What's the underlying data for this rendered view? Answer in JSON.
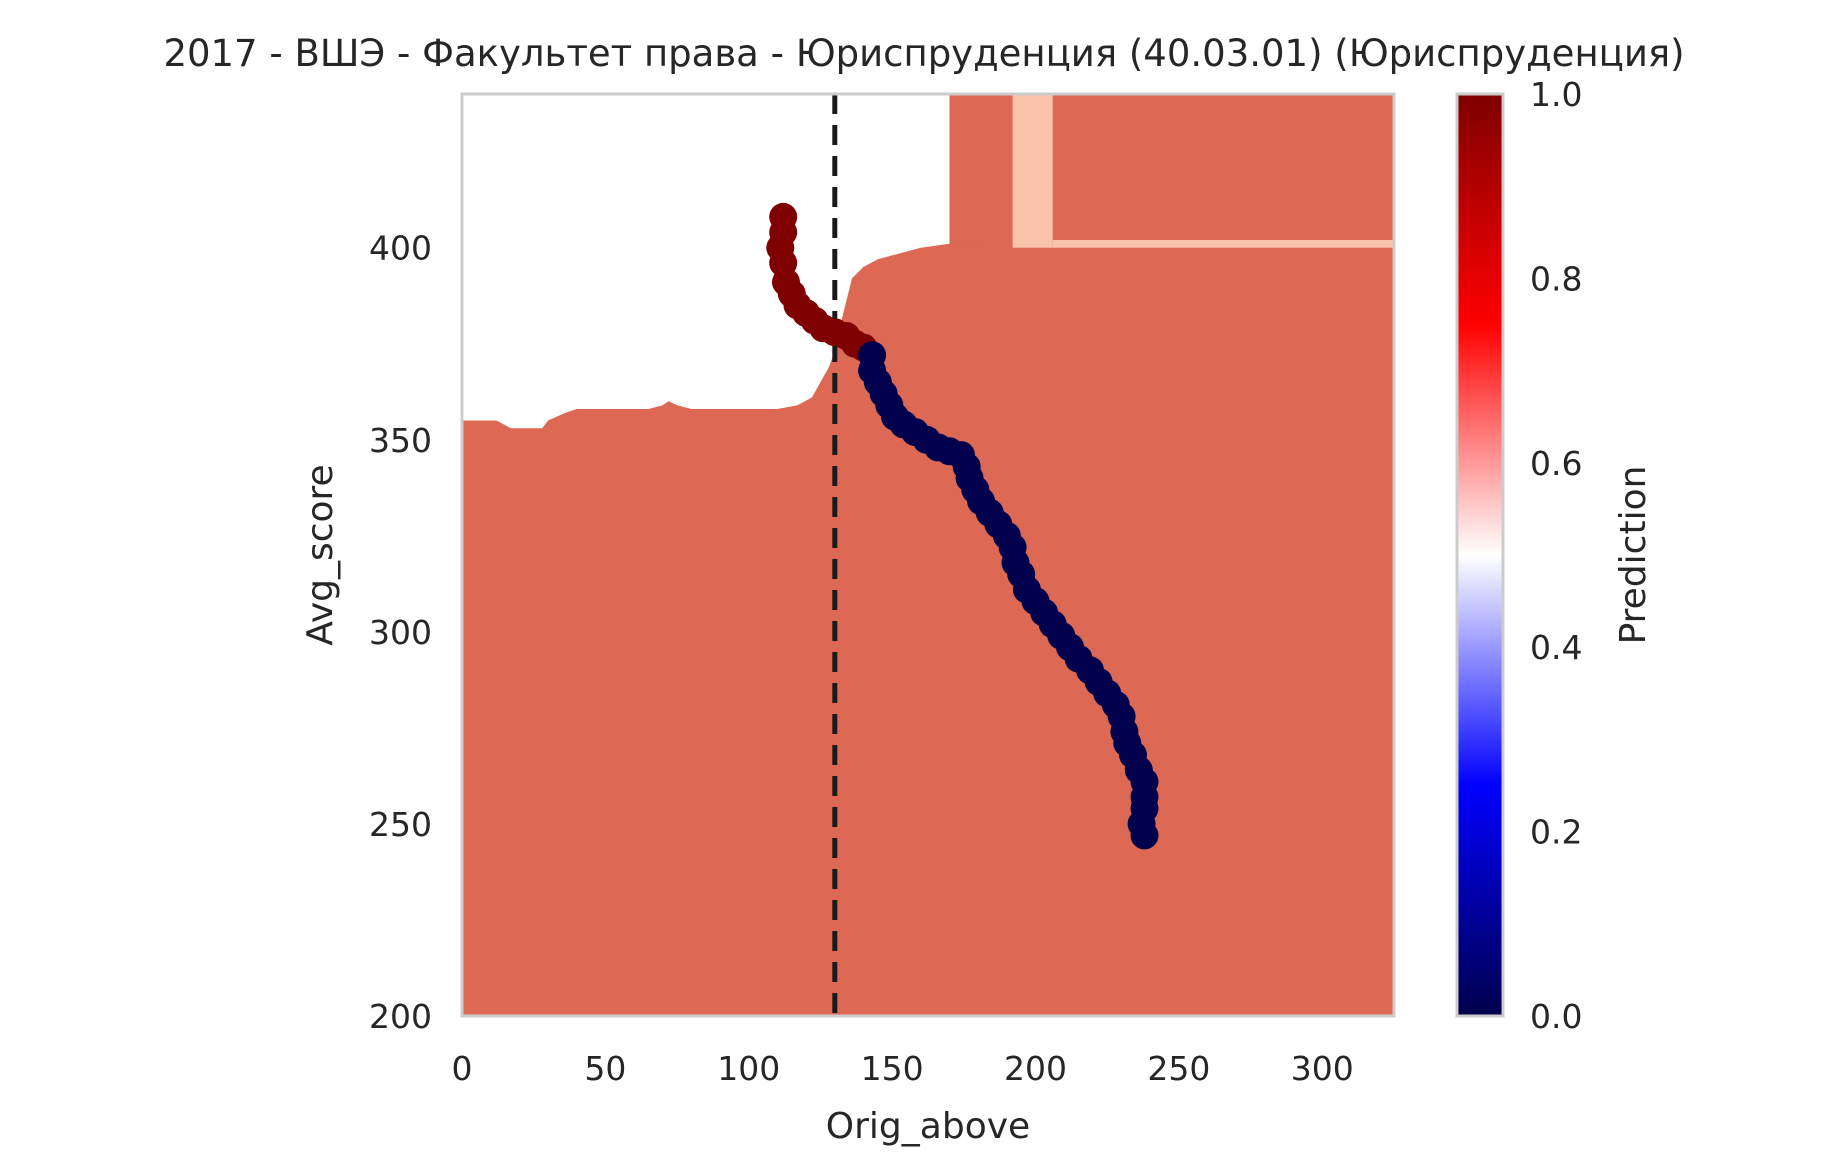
{
  "chart_data": {
    "type": "heatmap",
    "title": "2017 - ВШЭ - Факультет права - Юриспруденция (40.03.01) (Юриспруденция)",
    "xlabel": "Orig_above",
    "ylabel": "Avg_score",
    "xlim": [
      0,
      325
    ],
    "ylim": [
      200,
      440
    ],
    "x_ticks": [
      0,
      50,
      100,
      150,
      200,
      250,
      300
    ],
    "y_ticks": [
      200,
      250,
      300,
      350,
      400
    ],
    "grid": false,
    "colorbar": {
      "label": "Prediction",
      "range": [
        0,
        1
      ],
      "ticks": [
        "0.0",
        "0.2",
        "0.4",
        "0.6",
        "0.8",
        "1.0"
      ],
      "colormap": "seismic"
    },
    "contour_levels": [
      {
        "level": "0.0-0.1",
        "color": "#1b5594"
      },
      {
        "level": "0.1-0.2",
        "color": "#4a94c4"
      },
      {
        "level": "0.2-0.3",
        "color": "#a6cce2"
      },
      {
        "level": "0.3-0.4",
        "color": "#d2e5f0"
      },
      {
        "level": "0.4-0.5",
        "color": "#f7f7f7"
      },
      {
        "level": "0.5-0.6",
        "color": "#f9c4ab"
      },
      {
        "level": "0.6-0.7",
        "color": "#dd6853"
      },
      {
        "level": "0.7-1.0",
        "color": "#9b1028"
      }
    ],
    "threshold_x": 130,
    "threshold_style": "dashed",
    "threshold_color": "#1a1a1a",
    "trajectory": [
      {
        "x": 112,
        "y": 408,
        "p": 1
      },
      {
        "x": 112,
        "y": 404,
        "p": 1
      },
      {
        "x": 111,
        "y": 400,
        "p": 1
      },
      {
        "x": 112,
        "y": 396,
        "p": 1
      },
      {
        "x": 113,
        "y": 391,
        "p": 1
      },
      {
        "x": 115,
        "y": 388,
        "p": 1
      },
      {
        "x": 117,
        "y": 385,
        "p": 1
      },
      {
        "x": 120,
        "y": 383,
        "p": 1
      },
      {
        "x": 123,
        "y": 381,
        "p": 1
      },
      {
        "x": 126,
        "y": 379,
        "p": 1
      },
      {
        "x": 130,
        "y": 378,
        "p": 1
      },
      {
        "x": 134,
        "y": 377,
        "p": 1
      },
      {
        "x": 137,
        "y": 375,
        "p": 1
      },
      {
        "x": 140,
        "y": 374,
        "p": 1
      },
      {
        "x": 143,
        "y": 372,
        "p": 0
      },
      {
        "x": 143,
        "y": 368,
        "p": 0
      },
      {
        "x": 145,
        "y": 365,
        "p": 0
      },
      {
        "x": 147,
        "y": 362,
        "p": 0
      },
      {
        "x": 149,
        "y": 359,
        "p": 0
      },
      {
        "x": 151,
        "y": 356,
        "p": 0
      },
      {
        "x": 154,
        "y": 354,
        "p": 0
      },
      {
        "x": 158,
        "y": 352,
        "p": 0
      },
      {
        "x": 162,
        "y": 350,
        "p": 0
      },
      {
        "x": 166,
        "y": 348,
        "p": 0
      },
      {
        "x": 170,
        "y": 347,
        "p": 0
      },
      {
        "x": 174,
        "y": 346,
        "p": 0
      },
      {
        "x": 176,
        "y": 343,
        "p": 0
      },
      {
        "x": 177,
        "y": 340,
        "p": 0
      },
      {
        "x": 179,
        "y": 337,
        "p": 0
      },
      {
        "x": 181,
        "y": 334,
        "p": 0
      },
      {
        "x": 184,
        "y": 331,
        "p": 0
      },
      {
        "x": 187,
        "y": 328,
        "p": 0
      },
      {
        "x": 190,
        "y": 325,
        "p": 0
      },
      {
        "x": 192,
        "y": 322,
        "p": 0
      },
      {
        "x": 193,
        "y": 318,
        "p": 0
      },
      {
        "x": 195,
        "y": 315,
        "p": 0
      },
      {
        "x": 197,
        "y": 311,
        "p": 0
      },
      {
        "x": 200,
        "y": 308,
        "p": 0
      },
      {
        "x": 203,
        "y": 305,
        "p": 0
      },
      {
        "x": 206,
        "y": 302,
        "p": 0
      },
      {
        "x": 209,
        "y": 299,
        "p": 0
      },
      {
        "x": 212,
        "y": 296,
        "p": 0
      },
      {
        "x": 215,
        "y": 293,
        "p": 0
      },
      {
        "x": 219,
        "y": 290,
        "p": 0
      },
      {
        "x": 222,
        "y": 287,
        "p": 0
      },
      {
        "x": 225,
        "y": 284,
        "p": 0
      },
      {
        "x": 228,
        "y": 281,
        "p": 0
      },
      {
        "x": 230,
        "y": 278,
        "p": 0
      },
      {
        "x": 231,
        "y": 274,
        "p": 0
      },
      {
        "x": 232,
        "y": 271,
        "p": 0
      },
      {
        "x": 234,
        "y": 268,
        "p": 0
      },
      {
        "x": 236,
        "y": 264,
        "p": 0
      },
      {
        "x": 238,
        "y": 261,
        "p": 0
      },
      {
        "x": 238,
        "y": 257,
        "p": 0
      },
      {
        "x": 238,
        "y": 254,
        "p": 0
      },
      {
        "x": 237,
        "y": 250,
        "p": 0
      },
      {
        "x": 238,
        "y": 247,
        "p": 0
      }
    ]
  }
}
